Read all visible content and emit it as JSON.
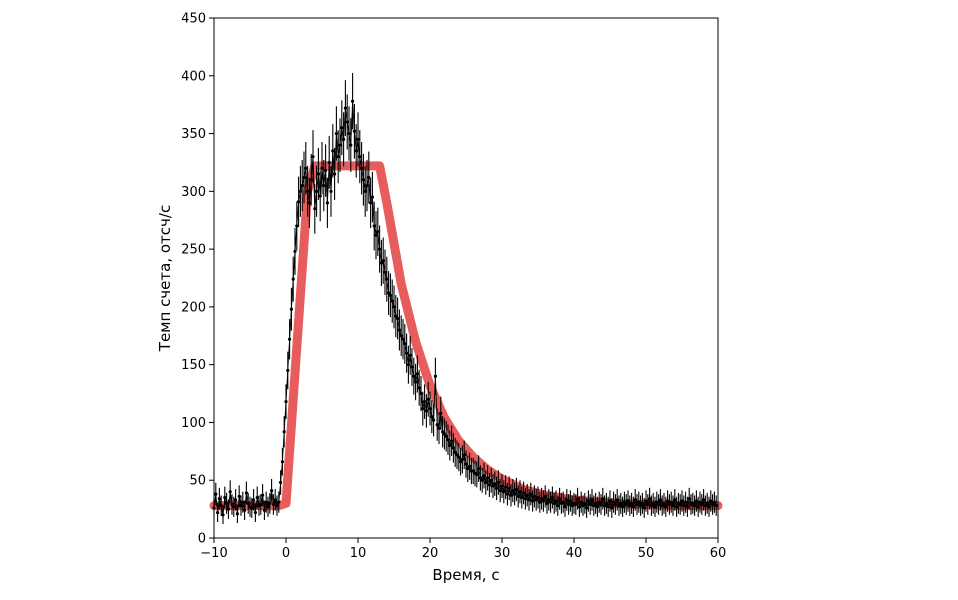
{
  "chart_data": {
    "type": "scatter",
    "title": "",
    "xlabel": "Время, с",
    "ylabel": "Темп счета, отсч/с",
    "xlim": [
      -10,
      60
    ],
    "ylim": [
      0,
      450
    ],
    "xticks": [
      -10,
      0,
      10,
      20,
      30,
      40,
      50,
      60
    ],
    "yticks": [
      0,
      50,
      100,
      150,
      200,
      250,
      300,
      350,
      400,
      450
    ],
    "xtick_labels": [
      "−10",
      "0",
      "10",
      "20",
      "30",
      "40",
      "50",
      "60"
    ],
    "ytick_labels": [
      "0",
      "50",
      "100",
      "150",
      "200",
      "250",
      "300",
      "350",
      "400",
      "450"
    ],
    "grid": false,
    "legend": "none",
    "colors": {
      "data": "#000000",
      "model": "#e03030"
    },
    "series": [
      {
        "type": "errorbar-scatter",
        "x_start": -10,
        "x_step": 0.25,
        "y": [
          26,
          38,
          22,
          34,
          28,
          20,
          35,
          30,
          25,
          40,
          29,
          27,
          33,
          21,
          36,
          28,
          31,
          24,
          39,
          30,
          27,
          26,
          33,
          22,
          35,
          28,
          29,
          37,
          24,
          31,
          27,
          30,
          41,
          29,
          33,
          28,
          31,
          48,
          66,
          92,
          118,
          145,
          172,
          198,
          224,
          248,
          270,
          291,
          300,
          305,
          312,
          320,
          300,
          290,
          310,
          330,
          285,
          300,
          315,
          296,
          320,
          305,
          318,
          290,
          325,
          300,
          335,
          315,
          350,
          330,
          340,
          355,
          345,
          372,
          360,
          350,
          340,
          378,
          352,
          335,
          345,
          330,
          320,
          310,
          300,
          305,
          312,
          290,
          295,
          270,
          262,
          265,
          250,
          238,
          240,
          230,
          224,
          212,
          210,
          205,
          200,
          192,
          190,
          180,
          175,
          172,
          168,
          160,
          150,
          158,
          148,
          140,
          135,
          142,
          130,
          125,
          112,
          118,
          110,
          120,
          112,
          105,
          102,
          140,
          98,
          95,
          108,
          92,
          90,
          88,
          85,
          80,
          84,
          78,
          74,
          72,
          70,
          66,
          68,
          72,
          64,
          60,
          62,
          58,
          58,
          56,
          55,
          60,
          52,
          50,
          54,
          48,
          52,
          46,
          50,
          45,
          47,
          43,
          48,
          41,
          45,
          40,
          44,
          38,
          43,
          37,
          41,
          38,
          42,
          36,
          40,
          35,
          39,
          34,
          37,
          33,
          38,
          32,
          36,
          33,
          35,
          31,
          34,
          32,
          36,
          30,
          33,
          31,
          35,
          30,
          32,
          28,
          34,
          30,
          31,
          27,
          33,
          29,
          32,
          28,
          30,
          29,
          34,
          27,
          31,
          28,
          30,
          26,
          32,
          29,
          33,
          28,
          30,
          27,
          31,
          29,
          34,
          28,
          30,
          27,
          32,
          26,
          31,
          29,
          33,
          28,
          30,
          27,
          31,
          29,
          32,
          28,
          30,
          27,
          33,
          29,
          31,
          28,
          30,
          26,
          32,
          29,
          34,
          28,
          30,
          27,
          31,
          29,
          33,
          28,
          30,
          27,
          32,
          29,
          31,
          28,
          33,
          27,
          30,
          29,
          32,
          28,
          31,
          27,
          34,
          29,
          30,
          28,
          32,
          27,
          31,
          29,
          33,
          28,
          30,
          27,
          32,
          29,
          31,
          28
        ]
      },
      {
        "type": "line",
        "x": [
          -10,
          -1,
          0,
          3,
          4,
          13,
          14,
          16,
          18,
          20,
          22,
          24,
          26,
          28,
          30,
          33,
          36,
          40,
          45,
          50,
          55,
          60
        ],
        "y": [
          28,
          28,
          30,
          300,
          322,
          322,
          290,
          220,
          170,
          132,
          104,
          84,
          70,
          59,
          51,
          42,
          37,
          33,
          30,
          29,
          28,
          28
        ]
      }
    ]
  }
}
